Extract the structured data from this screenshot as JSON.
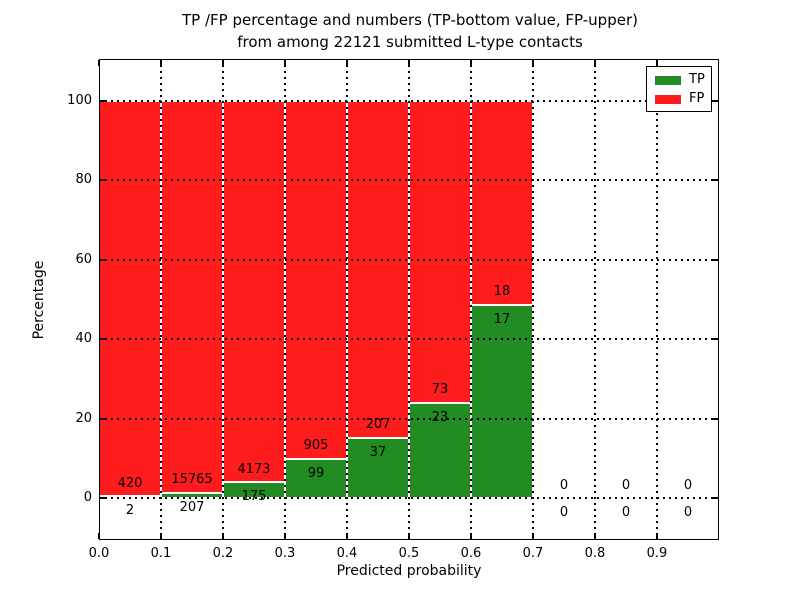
{
  "figure": {
    "title_line1": "TP /FP percentage and numbers (TP-bottom value, FP-upper)",
    "title_line2": "from among 22121 submitted L-type contacts"
  },
  "chart_data": {
    "type": "bar",
    "subtype": "stacked-percentage-histogram",
    "title": "TP /FP percentage and numbers (TP-bottom value, FP-upper) from among 22121 submitted L-type contacts",
    "xlabel": "Predicted probability",
    "ylabel": "Percentage",
    "total_contacts": 22121,
    "xlim": [
      0.0,
      1.0
    ],
    "ylim": [
      -10.5,
      110.5
    ],
    "xticks": [
      0.0,
      0.1,
      0.2,
      0.3,
      0.4,
      0.5,
      0.6,
      0.7,
      0.8,
      0.9
    ],
    "xtick_labels": [
      "0.0",
      "0.1",
      "0.2",
      "0.3",
      "0.4",
      "0.5",
      "0.6",
      "0.7",
      "0.8",
      "0.9"
    ],
    "yticks": [
      0,
      20,
      40,
      60,
      80,
      100
    ],
    "ytick_labels": [
      "0",
      "20",
      "40",
      "60",
      "80",
      "100"
    ],
    "grid": "dotted-black-over-bars",
    "bar_edge_color": "#ffffff",
    "categories": [
      "0.0-0.1",
      "0.1-0.2",
      "0.2-0.3",
      "0.3-0.4",
      "0.4-0.5",
      "0.5-0.6",
      "0.6-0.7",
      "0.7-0.8",
      "0.8-0.9",
      "0.9-1.0"
    ],
    "series": [
      {
        "name": "TP",
        "color": "#228b22",
        "counts": [
          2,
          207,
          175,
          99,
          37,
          23,
          17,
          0,
          0,
          0
        ]
      },
      {
        "name": "FP",
        "color": "#ff1c1c",
        "counts": [
          420,
          15765,
          4173,
          905,
          207,
          73,
          18,
          0,
          0,
          0
        ]
      }
    ],
    "tp_percent_by_bin": [
      0.47,
      1.3,
      4.02,
      9.86,
      15.16,
      23.96,
      48.57,
      null,
      null,
      null
    ],
    "legend": {
      "position": "upper right",
      "entries": [
        {
          "label": "TP",
          "color": "#228b22"
        },
        {
          "label": "FP",
          "color": "#ff1c1c"
        }
      ]
    }
  }
}
